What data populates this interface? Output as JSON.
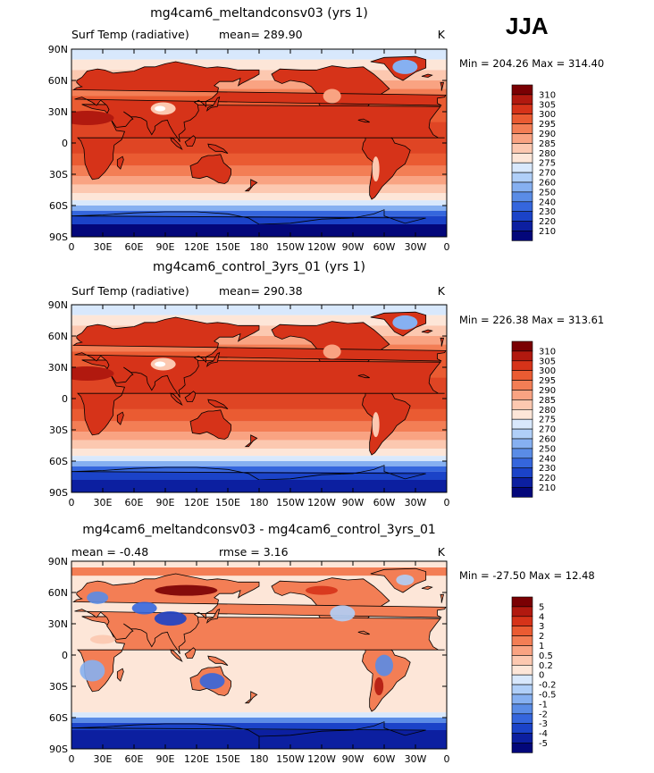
{
  "season": "JJA",
  "colors": {
    "ocean_warm": "#e9683f",
    "land_line": "#000000"
  },
  "panels": [
    {
      "title": "mg4cam6_meltandconsv03 (yrs 1)",
      "left_label": "Surf Temp (radiative)",
      "center_label": "mean=  289.90",
      "right_label": "K",
      "minmax": "Min = 204.26 Max = 314.40",
      "colorbar": {
        "labels": [
          "310",
          "305",
          "300",
          "295",
          "290",
          "285",
          "280",
          "275",
          "270",
          "260",
          "250",
          "240",
          "230",
          "220",
          "210"
        ],
        "colors": [
          "#7a0003",
          "#b1190f",
          "#d63319",
          "#ea5b32",
          "#f37e55",
          "#f9a382",
          "#fcc8b0",
          "#fde6d8",
          "#d8e8fc",
          "#b0cff8",
          "#86b0f1",
          "#5a8ce6",
          "#3566dd",
          "#1b43c8",
          "#0c1fa0",
          "#03077a"
        ]
      },
      "yticks": [
        "90N",
        "60N",
        "30N",
        "0",
        "30S",
        "60S",
        "90S"
      ],
      "xticks": [
        "0",
        "30E",
        "60E",
        "90E",
        "120E",
        "150E",
        "180",
        "150W",
        "120W",
        "90W",
        "60W",
        "30W",
        "0"
      ]
    },
    {
      "title": "mg4cam6_control_3yrs_01 (yrs 1)",
      "left_label": "Surf Temp (radiative)",
      "center_label": "mean=  290.38",
      "right_label": "K",
      "minmax": "Min = 226.38 Max = 313.61",
      "colorbar": {
        "labels": [
          "310",
          "305",
          "300",
          "295",
          "290",
          "285",
          "280",
          "275",
          "270",
          "260",
          "250",
          "240",
          "230",
          "220",
          "210"
        ],
        "colors": [
          "#7a0003",
          "#b1190f",
          "#d63319",
          "#ea5b32",
          "#f37e55",
          "#f9a382",
          "#fcc8b0",
          "#fde6d8",
          "#d8e8fc",
          "#b0cff8",
          "#86b0f1",
          "#5a8ce6",
          "#3566dd",
          "#1b43c8",
          "#0c1fa0",
          "#03077a"
        ]
      },
      "yticks": [
        "90N",
        "60N",
        "30N",
        "0",
        "30S",
        "60S",
        "90S"
      ],
      "xticks": [
        "0",
        "30E",
        "60E",
        "90E",
        "120E",
        "150E",
        "180",
        "150W",
        "120W",
        "90W",
        "60W",
        "30W",
        "0"
      ]
    },
    {
      "title": "mg4cam6_meltandconsv03 - mg4cam6_control_3yrs_01",
      "left_label": "mean =   -0.48",
      "center_label": "rmse =    3.16",
      "right_label": "K",
      "minmax": "Min = -27.50 Max =  12.48",
      "colorbar": {
        "labels": [
          "5",
          "4",
          "3",
          "2",
          "1",
          "0.5",
          "0.2",
          "0",
          "-0.2",
          "-0.5",
          "-1",
          "-2",
          "-3",
          "-4",
          "-5"
        ],
        "colors": [
          "#7a0003",
          "#b1190f",
          "#d63319",
          "#ea5b32",
          "#f37e55",
          "#f9a382",
          "#fcc8b0",
          "#fde6d8",
          "#d8e8fc",
          "#b0cff8",
          "#86b0f1",
          "#5a8ce6",
          "#3566dd",
          "#1b43c8",
          "#0c1fa0",
          "#03077a"
        ]
      },
      "yticks": [
        "90N",
        "60N",
        "30N",
        "0",
        "30S",
        "60S",
        "90S"
      ],
      "xticks": [
        "0",
        "30E",
        "60E",
        "90E",
        "120E",
        "150E",
        "180",
        "150W",
        "120W",
        "90W",
        "60W",
        "30W",
        "0"
      ]
    }
  ],
  "chart_data": [
    {
      "type": "heatmap",
      "title": "mg4cam6_meltandconsv03 (yrs 1)",
      "variable": "Surf Temp (radiative)",
      "units": "K",
      "mean": 289.9,
      "min": 204.26,
      "max": 314.4,
      "x_range": [
        0,
        360
      ],
      "y_range": [
        -90,
        90
      ],
      "levels": [
        210,
        220,
        230,
        240,
        250,
        260,
        270,
        275,
        280,
        285,
        290,
        295,
        300,
        305,
        310
      ]
    },
    {
      "type": "heatmap",
      "title": "mg4cam6_control_3yrs_01 (yrs 1)",
      "variable": "Surf Temp (radiative)",
      "units": "K",
      "mean": 290.38,
      "min": 226.38,
      "max": 313.61,
      "x_range": [
        0,
        360
      ],
      "y_range": [
        -90,
        90
      ],
      "levels": [
        210,
        220,
        230,
        240,
        250,
        260,
        270,
        275,
        280,
        285,
        290,
        295,
        300,
        305,
        310
      ]
    },
    {
      "type": "heatmap",
      "title": "mg4cam6_meltandconsv03 - mg4cam6_control_3yrs_01",
      "units": "K",
      "mean": -0.48,
      "rmse": 3.16,
      "min": -27.5,
      "max": 12.48,
      "x_range": [
        0,
        360
      ],
      "y_range": [
        -90,
        90
      ],
      "levels": [
        -5,
        -4,
        -3,
        -2,
        -1,
        -0.5,
        -0.2,
        0,
        0.2,
        0.5,
        1,
        2,
        3,
        4,
        5
      ]
    }
  ]
}
